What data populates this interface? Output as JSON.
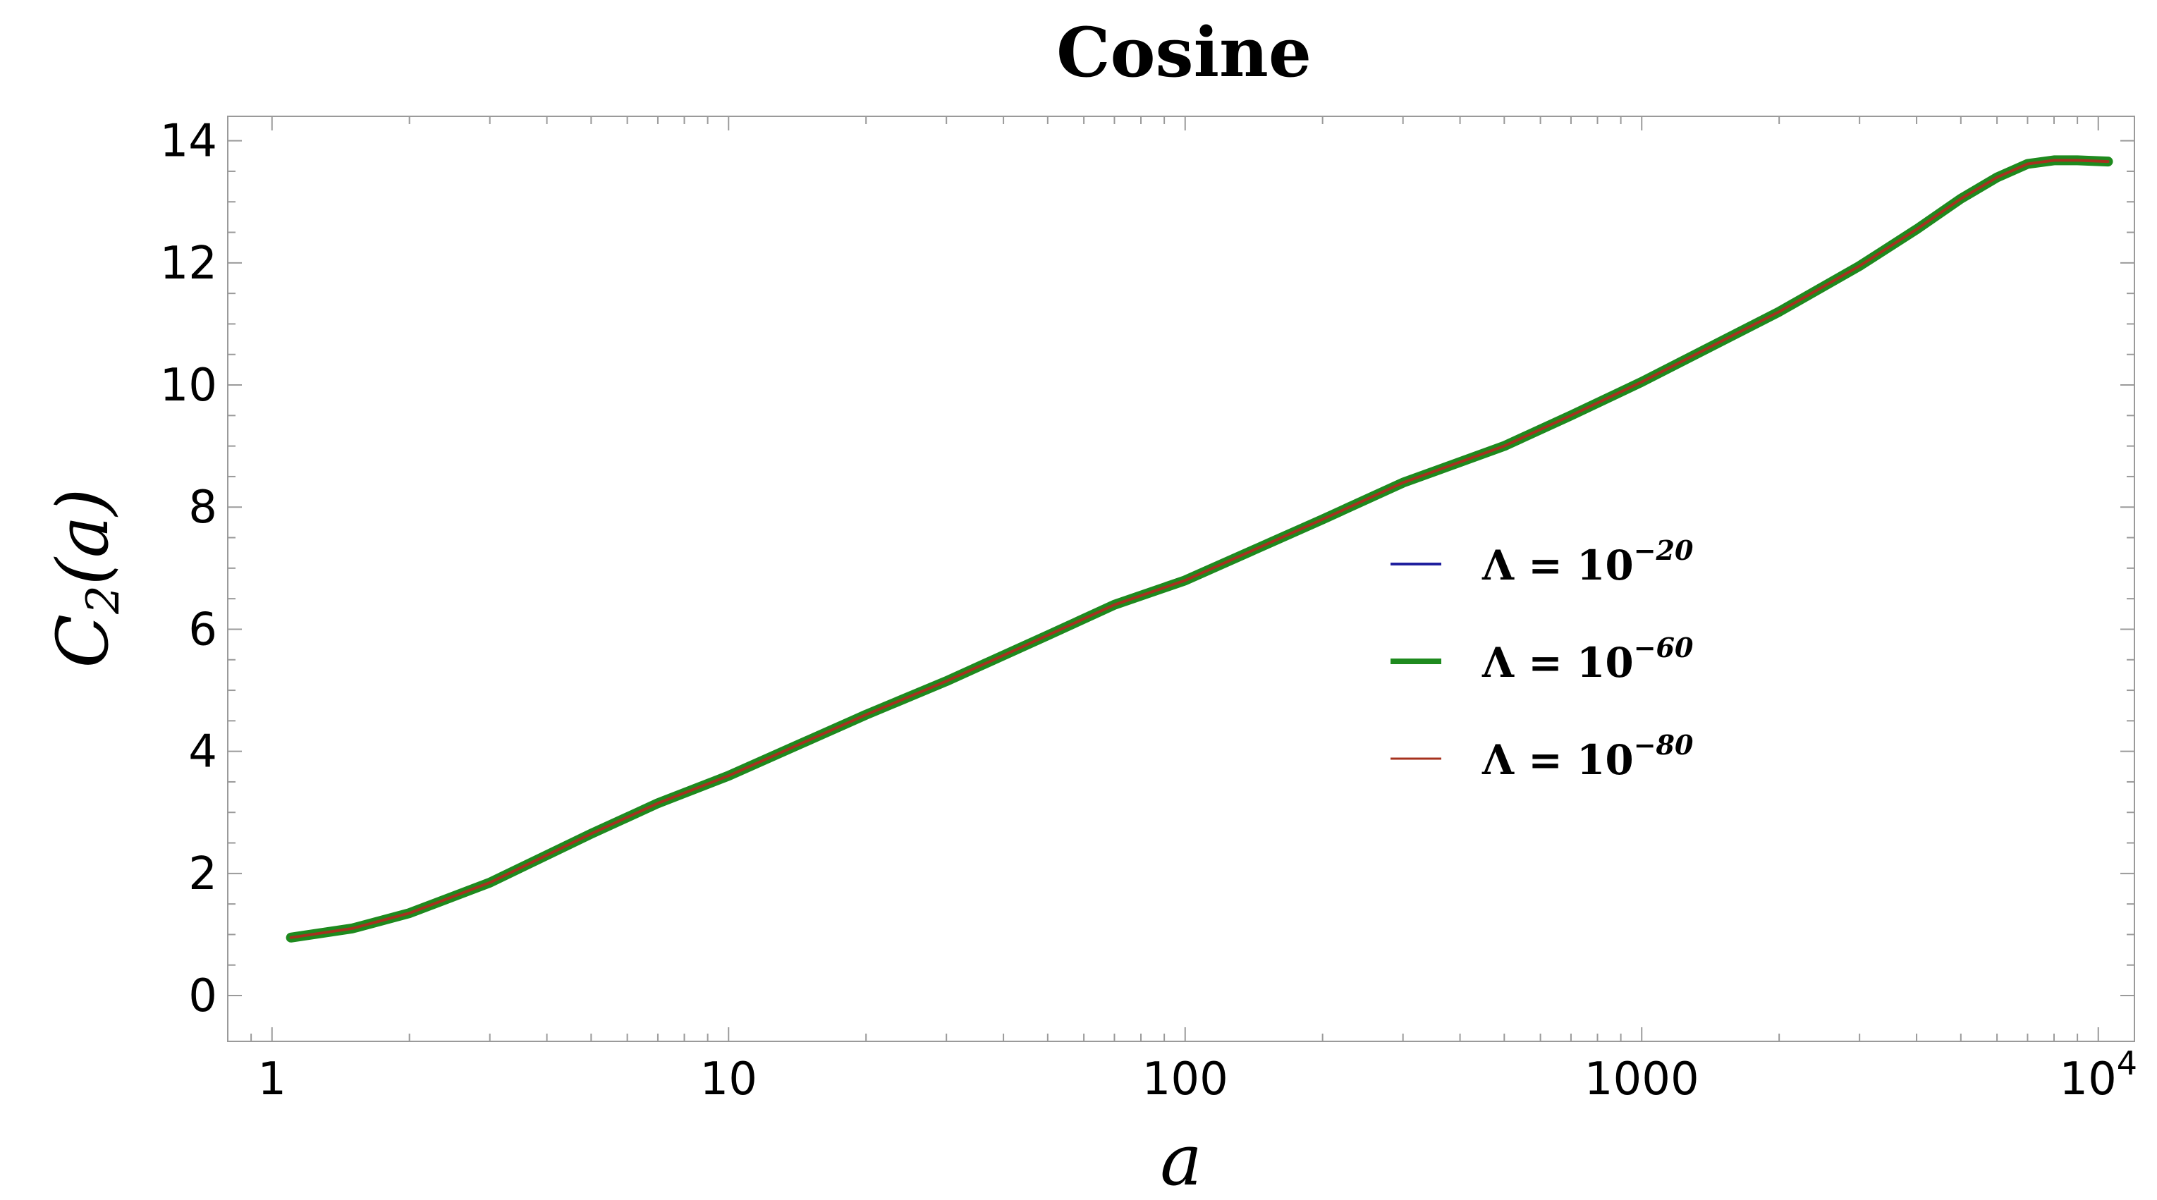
{
  "chart_data": {
    "type": "line",
    "title": "Cosine",
    "xlabel": "a",
    "ylabel": "C",
    "ylabel_sub": "2",
    "ylabel_arg": "(a)",
    "xscale": "log",
    "xlim": [
      0.8,
      12000
    ],
    "ylim": [
      -0.75,
      14.4
    ],
    "x_ticks": [
      {
        "value": 1,
        "label": "1"
      },
      {
        "value": 10,
        "label": "10"
      },
      {
        "value": 100,
        "label": "100"
      },
      {
        "value": 1000,
        "label": "1000"
      },
      {
        "value": 10000,
        "label": "10",
        "sup": "4"
      }
    ],
    "y_ticks": [
      0,
      2,
      4,
      6,
      8,
      10,
      12,
      14
    ],
    "grid": false,
    "legend_position": "center-right",
    "series": [
      {
        "name": "Λ = 10",
        "exponent": "−20",
        "color": "#1f1f9e",
        "x": [
          1.1,
          1.5,
          2,
          3,
          5,
          7,
          10,
          20,
          30,
          50,
          70,
          100,
          200,
          300,
          500,
          700,
          1000,
          2000,
          3000,
          4000,
          5000,
          6000,
          7000,
          8000,
          9000,
          10500
        ],
        "y": [
          0.95,
          1.1,
          1.35,
          1.85,
          2.65,
          3.15,
          3.6,
          4.6,
          5.15,
          5.9,
          6.4,
          6.8,
          7.8,
          8.4,
          9.0,
          9.5,
          10.05,
          11.2,
          11.95,
          12.55,
          13.05,
          13.4,
          13.62,
          13.68,
          13.68,
          13.66
        ]
      },
      {
        "name": "Λ = 10",
        "exponent": "−60",
        "color": "#1e8a1e",
        "x": [
          1.1,
          1.5,
          2,
          3,
          5,
          7,
          10,
          20,
          30,
          50,
          70,
          100,
          200,
          300,
          500,
          700,
          1000,
          2000,
          3000,
          4000,
          5000,
          6000,
          7000,
          8000,
          9000,
          10500
        ],
        "y": [
          0.95,
          1.1,
          1.35,
          1.85,
          2.65,
          3.15,
          3.6,
          4.6,
          5.15,
          5.9,
          6.4,
          6.8,
          7.8,
          8.4,
          9.0,
          9.5,
          10.05,
          11.2,
          11.95,
          12.55,
          13.05,
          13.4,
          13.62,
          13.68,
          13.68,
          13.66
        ]
      },
      {
        "name": "Λ = 10",
        "exponent": "−80",
        "color": "#a6321e",
        "x": [
          1.1,
          1.5,
          2,
          3,
          5,
          7,
          10,
          20,
          30,
          50,
          70,
          100,
          200,
          300,
          500,
          700,
          1000,
          2000,
          3000,
          4000,
          5000,
          6000,
          7000,
          8000,
          9000,
          10500
        ],
        "y": [
          0.95,
          1.1,
          1.35,
          1.85,
          2.65,
          3.15,
          3.6,
          4.6,
          5.15,
          5.9,
          6.4,
          6.8,
          7.8,
          8.4,
          9.0,
          9.5,
          10.05,
          11.2,
          11.95,
          12.55,
          13.05,
          13.4,
          13.62,
          13.68,
          13.68,
          13.66
        ]
      }
    ]
  }
}
